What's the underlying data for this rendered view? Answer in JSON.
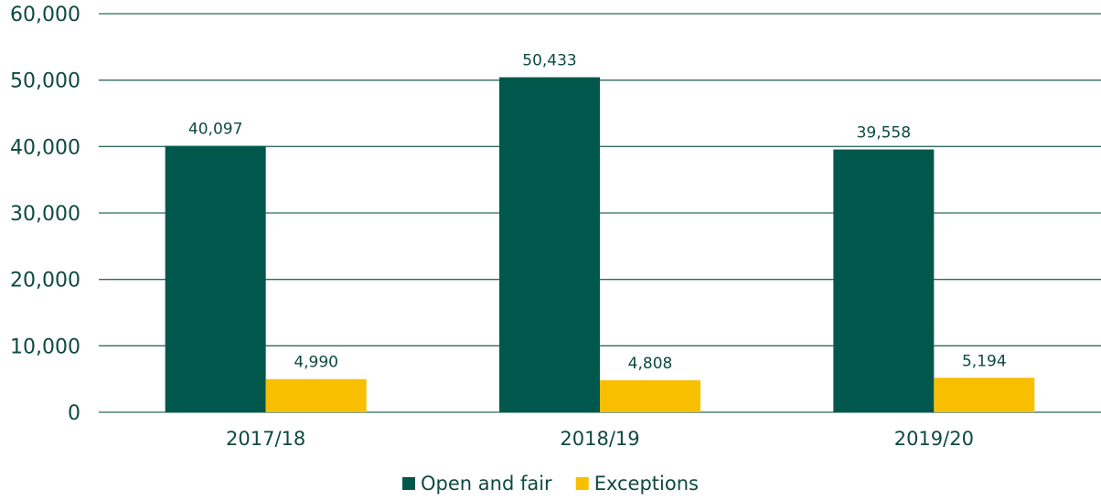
{
  "chart_data": {
    "type": "bar",
    "categories": [
      "2017/18",
      "2018/19",
      "2019/20"
    ],
    "series": [
      {
        "name": "Open and fair",
        "color": "#00584c",
        "values": [
          40097,
          50433,
          39558
        ],
        "value_labels": [
          "40,097",
          "50,433",
          "39,558"
        ]
      },
      {
        "name": "Exceptions",
        "color": "#f8bf00",
        "values": [
          4990,
          4808,
          5194
        ],
        "value_labels": [
          "4,990",
          "4,808",
          "5,194"
        ]
      }
    ],
    "ylim": [
      0,
      60000
    ],
    "yticks": [
      0,
      {
        "value": 10000,
        "label": "10,000"
      },
      {
        "value": 20000,
        "label": "20,000"
      },
      {
        "value": 30000,
        "label": "30,000"
      },
      {
        "value": 40000,
        "label": "40,000"
      },
      {
        "value": 50000,
        "label": "50,000"
      },
      {
        "value": 60000,
        "label": "60,000"
      }
    ],
    "grid": true,
    "legend": "bottom"
  }
}
